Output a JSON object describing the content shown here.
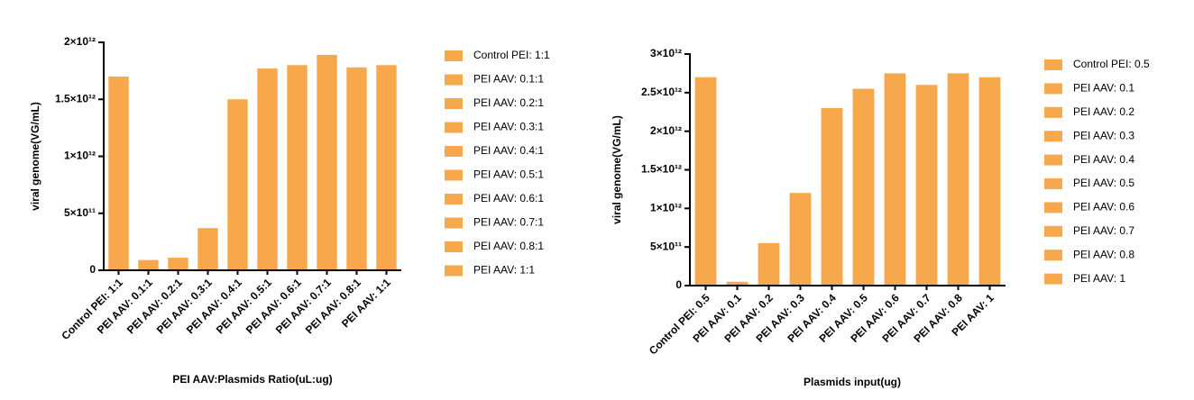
{
  "chart_data": [
    {
      "type": "bar",
      "x_label": "PEI AAV:Plasmids Ratio(uL:ug)",
      "y_label": "viral genome(VG/mL)",
      "categories": [
        "Control PEI: 1:1",
        "PEI AAV: 0.1:1",
        "PEI AAV: 0.2:1",
        "PEI AAV: 0.3:1",
        "PEI AAV: 0.4:1",
        "PEI AAV: 0.5:1",
        "PEI AAV: 0.6:1",
        "PEI AAV: 0.7:1",
        "PEI AAV: 0.8:1",
        "PEI AAV: 1:1"
      ],
      "values": [
        1700000000000,
        90000000000,
        110000000000,
        370000000000,
        1500000000000,
        1770000000000,
        1800000000000,
        1890000000000,
        1780000000000,
        1800000000000
      ],
      "color": "#f8a84c",
      "ylim": [
        0,
        2000000000000
      ],
      "yticks": [
        0,
        {
          "value": 500000000000,
          "label": "5×10¹¹"
        },
        {
          "value": 1000000000000,
          "label": "1×10¹²"
        },
        {
          "value": 1500000000000,
          "label": "1.5×10¹²"
        },
        {
          "value": 2000000000000,
          "label": "2×10¹²"
        }
      ],
      "legend": "right"
    },
    {
      "type": "bar",
      "x_label": "Plasmids input(ug)",
      "y_label": "viral genome(VG/mL)",
      "categories": [
        "Control PEI: 0.5",
        "PEI AAV: 0.1",
        "PEI AAV: 0.2",
        "PEI AAV: 0.3",
        "PEI AAV: 0.4",
        "PEI AAV: 0.5",
        "PEI AAV: 0.6",
        "PEI AAV: 0.7",
        "PEI AAV: 0.8",
        "PEI AAV: 1"
      ],
      "values": [
        2700000000000,
        50000000000,
        550000000000,
        1200000000000,
        2300000000000,
        2550000000000,
        2750000000000,
        2600000000000,
        2750000000000,
        2700000000000
      ],
      "color": "#f8a84c",
      "ylim": [
        0,
        3000000000000
      ],
      "yticks": [
        0,
        {
          "value": 500000000000,
          "label": "5×10¹¹"
        },
        {
          "value": 1000000000000,
          "label": "1×10¹²"
        },
        {
          "value": 1500000000000,
          "label": "1.5×10¹²"
        },
        {
          "value": 2000000000000,
          "label": "2×10¹²"
        },
        {
          "value": 2500000000000,
          "label": "2.5×10¹²"
        },
        {
          "value": 3000000000000,
          "label": "3×10¹²"
        }
      ],
      "legend": "right"
    }
  ]
}
